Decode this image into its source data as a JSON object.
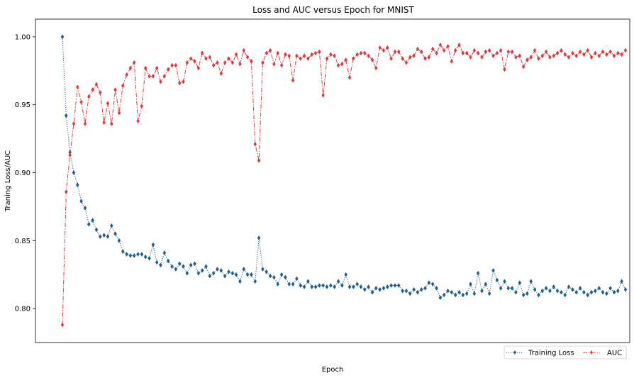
{
  "chart_data": {
    "type": "line",
    "title": "Loss and AUC versus Epoch for MNIST",
    "xlabel": "Epoch",
    "ylabel": "Traning Loss/AUC",
    "ylim": [
      0.775,
      1.013
    ],
    "yticks": [
      "0.80",
      "0.85",
      "0.90",
      "0.95",
      "1.00"
    ],
    "ytick_values": [
      0.8,
      0.85,
      0.9,
      0.95,
      1.0
    ],
    "x": [
      1,
      2,
      3,
      4,
      5,
      6,
      7,
      8,
      9,
      10,
      11,
      12,
      13,
      14,
      15,
      16,
      17,
      18,
      19,
      20,
      21,
      22,
      23,
      24,
      25,
      26,
      27,
      28,
      29,
      30,
      31,
      32,
      33,
      34,
      35,
      36,
      37,
      38,
      39,
      40,
      41,
      42,
      43,
      44,
      45,
      46,
      47,
      48,
      49,
      50,
      51,
      52,
      53,
      54,
      55,
      56,
      57,
      58,
      59,
      60,
      61,
      62,
      63,
      64,
      65,
      66,
      67,
      68,
      69,
      70,
      71,
      72,
      73,
      74,
      75,
      76,
      77,
      78,
      79,
      80,
      81,
      82,
      83,
      84,
      85,
      86,
      87,
      88,
      89,
      90,
      91,
      92,
      93,
      94,
      95,
      96,
      97,
      98,
      99,
      100,
      101,
      102,
      103,
      104,
      105,
      106,
      107,
      108,
      109,
      110,
      111,
      112,
      113,
      114,
      115,
      116,
      117,
      118,
      119,
      120,
      121,
      122,
      123,
      124,
      125,
      126,
      127,
      128,
      129,
      130,
      131,
      132,
      133,
      134,
      135,
      136,
      137,
      138,
      139,
      140,
      141,
      142,
      143,
      144,
      145,
      146,
      147,
      148,
      149,
      150
    ],
    "grid": false,
    "legend_position": "lower-right",
    "series": [
      {
        "name": "Training Loss",
        "color": "#1f5f8f",
        "linestyle": "dotted",
        "marker": "diamond",
        "values": [
          1.0,
          0.942,
          0.915,
          0.9,
          0.891,
          0.879,
          0.874,
          0.862,
          0.865,
          0.858,
          0.853,
          0.854,
          0.853,
          0.861,
          0.855,
          0.85,
          0.842,
          0.84,
          0.839,
          0.839,
          0.84,
          0.84,
          0.838,
          0.837,
          0.847,
          0.834,
          0.832,
          0.841,
          0.835,
          0.831,
          0.829,
          0.833,
          0.831,
          0.826,
          0.832,
          0.833,
          0.826,
          0.828,
          0.831,
          0.824,
          0.826,
          0.829,
          0.828,
          0.824,
          0.827,
          0.826,
          0.825,
          0.82,
          0.829,
          0.825,
          0.825,
          0.82,
          0.852,
          0.829,
          0.827,
          0.824,
          0.823,
          0.818,
          0.825,
          0.823,
          0.818,
          0.818,
          0.822,
          0.817,
          0.816,
          0.82,
          0.816,
          0.816,
          0.817,
          0.817,
          0.816,
          0.817,
          0.816,
          0.82,
          0.817,
          0.825,
          0.816,
          0.816,
          0.818,
          0.816,
          0.814,
          0.816,
          0.812,
          0.815,
          0.814,
          0.815,
          0.816,
          0.817,
          0.817,
          0.817,
          0.813,
          0.813,
          0.811,
          0.814,
          0.812,
          0.814,
          0.815,
          0.819,
          0.818,
          0.815,
          0.808,
          0.81,
          0.813,
          0.812,
          0.81,
          0.812,
          0.81,
          0.811,
          0.818,
          0.811,
          0.826,
          0.813,
          0.818,
          0.811,
          0.828,
          0.821,
          0.815,
          0.82,
          0.815,
          0.815,
          0.812,
          0.819,
          0.81,
          0.811,
          0.82,
          0.814,
          0.81,
          0.813,
          0.815,
          0.813,
          0.816,
          0.813,
          0.812,
          0.81,
          0.816,
          0.814,
          0.812,
          0.815,
          0.812,
          0.81,
          0.812,
          0.813,
          0.815,
          0.812,
          0.811,
          0.815,
          0.812,
          0.813,
          0.82,
          0.814
        ]
      },
      {
        "name": "AUC",
        "color": "#e03a3e",
        "linestyle": "dashdot",
        "marker": "diamond",
        "values": [
          0.788,
          0.886,
          0.913,
          0.936,
          0.963,
          0.952,
          0.936,
          0.956,
          0.961,
          0.965,
          0.959,
          0.937,
          0.951,
          0.936,
          0.961,
          0.944,
          0.964,
          0.972,
          0.977,
          0.981,
          0.938,
          0.949,
          0.977,
          0.971,
          0.971,
          0.977,
          0.967,
          0.971,
          0.976,
          0.979,
          0.979,
          0.966,
          0.967,
          0.981,
          0.984,
          0.982,
          0.977,
          0.988,
          0.984,
          0.985,
          0.979,
          0.981,
          0.973,
          0.981,
          0.984,
          0.981,
          0.987,
          0.98,
          0.99,
          0.985,
          0.982,
          0.921,
          0.909,
          0.981,
          0.988,
          0.99,
          0.98,
          0.988,
          0.979,
          0.987,
          0.986,
          0.968,
          0.986,
          0.984,
          0.986,
          0.984,
          0.987,
          0.988,
          0.989,
          0.957,
          0.984,
          0.987,
          0.986,
          0.979,
          0.98,
          0.983,
          0.97,
          0.984,
          0.987,
          0.988,
          0.988,
          0.986,
          0.983,
          0.977,
          0.992,
          0.99,
          0.992,
          0.984,
          0.989,
          0.989,
          0.984,
          0.981,
          0.985,
          0.986,
          0.991,
          0.989,
          0.984,
          0.985,
          0.991,
          0.988,
          0.994,
          0.99,
          0.993,
          0.982,
          0.99,
          0.994,
          0.988,
          0.988,
          0.985,
          0.99,
          0.988,
          0.985,
          0.989,
          0.99,
          0.986,
          0.988,
          0.99,
          0.976,
          0.989,
          0.989,
          0.985,
          0.986,
          0.978,
          0.983,
          0.985,
          0.99,
          0.984,
          0.986,
          0.989,
          0.985,
          0.986,
          0.988,
          0.99,
          0.987,
          0.985,
          0.988,
          0.986,
          0.989,
          0.987,
          0.99,
          0.985,
          0.988,
          0.986,
          0.989,
          0.987,
          0.989,
          0.986,
          0.988,
          0.987,
          0.99
        ]
      }
    ]
  }
}
